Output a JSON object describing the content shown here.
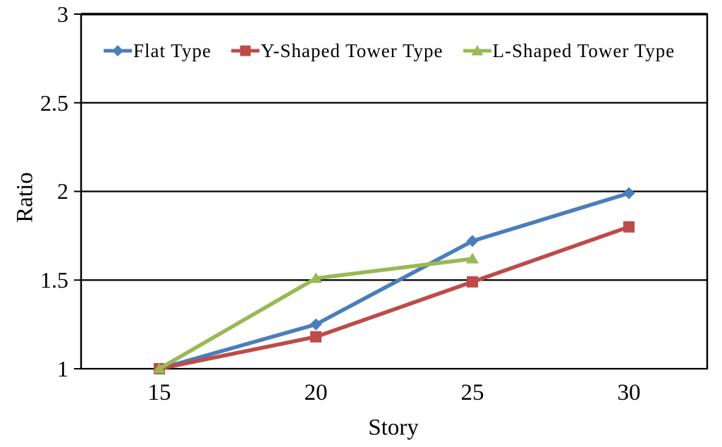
{
  "chart_data": {
    "type": "line",
    "title": "",
    "xlabel": "Story",
    "ylabel": "Ratio",
    "categories": [
      "15",
      "20",
      "25",
      "30"
    ],
    "xtick_labels": [
      "15",
      "20",
      "25",
      "30"
    ],
    "ytick_labels": [
      "1",
      "1.5",
      "2",
      "2.5",
      "3"
    ],
    "yticks": [
      1,
      1.5,
      2,
      2.5,
      3
    ],
    "ylim": [
      1,
      3
    ],
    "grid": "horizontal-only",
    "plot_border": true,
    "legend_position": "top-inside-horizontal",
    "axis_color": "#000000",
    "series": [
      {
        "name": "Flat Type",
        "marker": "diamond",
        "color": "#4a7ebb",
        "values": [
          1.0,
          1.25,
          1.72,
          1.99
        ]
      },
      {
        "name": "Y-Shaped Tower Type",
        "marker": "square",
        "color": "#be4b48",
        "values": [
          1.0,
          1.18,
          1.49,
          1.8
        ]
      },
      {
        "name": "L-Shaped Tower Type",
        "marker": "triangle",
        "color": "#98b954",
        "values": [
          1.0,
          1.51,
          1.62,
          null
        ]
      }
    ]
  }
}
